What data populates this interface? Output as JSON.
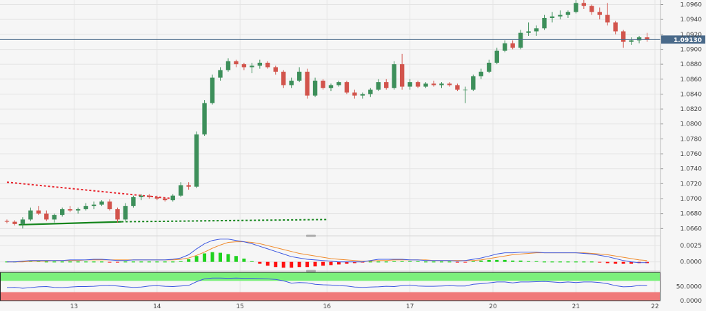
{
  "chart_data": {
    "type": "candlestick",
    "instrument_hint": "EUR/USD hourly",
    "price_axis": {
      "ylim": [
        1.0652,
        1.0966
      ],
      "ticks": [
        "1.0960",
        "1.0940",
        "1.0920",
        "1.0900",
        "1.0880",
        "1.0860",
        "1.0840",
        "1.0820",
        "1.0800",
        "1.0780",
        "1.0760",
        "1.0740",
        "1.0720",
        "1.0700",
        "1.0680",
        "1.0660"
      ]
    },
    "current_price": {
      "value": 1.0913,
      "label": "1.09130",
      "color": "#4a6a8a"
    },
    "x_axis": {
      "range": [
        0,
        82
      ],
      "ticks": [
        {
          "label": "13",
          "x": 8.5
        },
        {
          "label": "14",
          "x": 19.0
        },
        {
          "label": "15",
          "x": 29.5
        },
        {
          "label": "16",
          "x": 40.5
        },
        {
          "label": "17",
          "x": 51.0
        },
        {
          "label": "20",
          "x": 61.5
        },
        {
          "label": "21",
          "x": 72.0
        },
        {
          "label": "22",
          "x": 82.0
        }
      ]
    },
    "colors": {
      "up": "#3d8f5a",
      "down": "#d2544c",
      "grid": "#e4e4e4",
      "resistance": "#e8262e",
      "support": "#12841a"
    },
    "candles": [
      [
        0,
        1.067,
        1.0672,
        1.0667,
        1.0669
      ],
      [
        1,
        1.0669,
        1.0671,
        1.0664,
        1.0666
      ],
      [
        2,
        1.0666,
        1.0675,
        1.066,
        1.0672
      ],
      [
        3,
        1.0672,
        1.0688,
        1.067,
        1.0684
      ],
      [
        4,
        1.0684,
        1.069,
        1.0678,
        1.068
      ],
      [
        5,
        1.068,
        1.0684,
        1.067,
        1.0672
      ],
      [
        6,
        1.0672,
        1.068,
        1.0668,
        1.0678
      ],
      [
        7,
        1.0678,
        1.0688,
        1.0676,
        1.0686
      ],
      [
        8,
        1.0686,
        1.069,
        1.0682,
        1.0684
      ],
      [
        9,
        1.0684,
        1.0688,
        1.068,
        1.0686
      ],
      [
        10,
        1.0686,
        1.0694,
        1.0684,
        1.069
      ],
      [
        11,
        1.069,
        1.0696,
        1.0686,
        1.0692
      ],
      [
        12,
        1.0692,
        1.0698,
        1.069,
        1.0696
      ],
      [
        13,
        1.0696,
        1.0699,
        1.0684,
        1.0686
      ],
      [
        14,
        1.0686,
        1.0688,
        1.0668,
        1.0672
      ],
      [
        15,
        1.0672,
        1.0694,
        1.067,
        1.069
      ],
      [
        16,
        1.069,
        1.0704,
        1.0688,
        1.0702
      ],
      [
        17,
        1.0702,
        1.0706,
        1.0698,
        1.0704
      ],
      [
        18,
        1.0704,
        1.0706,
        1.07,
        1.0702
      ],
      [
        19,
        1.0702,
        1.0704,
        1.0698,
        1.07
      ],
      [
        20,
        1.07,
        1.0702,
        1.0696,
        1.0698
      ],
      [
        21,
        1.0698,
        1.0706,
        1.0696,
        1.0704
      ],
      [
        22,
        1.0704,
        1.0722,
        1.0702,
        1.0718
      ],
      [
        23,
        1.0718,
        1.0722,
        1.0712,
        1.0716
      ],
      [
        24,
        1.0716,
        1.079,
        1.0714,
        1.0786
      ],
      [
        25,
        1.0786,
        1.0832,
        1.0784,
        1.0828
      ],
      [
        26,
        1.0828,
        1.0866,
        1.0826,
        1.0862
      ],
      [
        27,
        1.0862,
        1.0876,
        1.0858,
        1.0872
      ],
      [
        28,
        1.0872,
        1.0888,
        1.087,
        1.0884
      ],
      [
        29,
        1.0884,
        1.0886,
        1.0876,
        1.088
      ],
      [
        30,
        1.088,
        1.0882,
        1.0872,
        1.0876
      ],
      [
        31,
        1.0876,
        1.0882,
        1.0868,
        1.0878
      ],
      [
        32,
        1.0878,
        1.0886,
        1.0874,
        1.0882
      ],
      [
        33,
        1.0882,
        1.0884,
        1.0874,
        1.0876
      ],
      [
        34,
        1.0876,
        1.0878,
        1.0866,
        1.087
      ],
      [
        35,
        1.087,
        1.0872,
        1.0848,
        1.0852
      ],
      [
        36,
        1.0852,
        1.0862,
        1.0848,
        1.0858
      ],
      [
        37,
        1.0858,
        1.0876,
        1.0856,
        1.087
      ],
      [
        38,
        1.087,
        1.0874,
        1.0834,
        1.0838
      ],
      [
        39,
        1.0838,
        1.0862,
        1.0836,
        1.0858
      ],
      [
        40,
        1.0858,
        1.086,
        1.0846,
        1.0848
      ],
      [
        41,
        1.0848,
        1.0854,
        1.0844,
        1.0852
      ],
      [
        42,
        1.0852,
        1.0858,
        1.085,
        1.0856
      ],
      [
        43,
        1.0856,
        1.0858,
        1.084,
        1.0842
      ],
      [
        44,
        1.0842,
        1.0846,
        1.0834,
        1.0838
      ],
      [
        45,
        1.0838,
        1.0842,
        1.0834,
        1.084
      ],
      [
        46,
        1.084,
        1.0848,
        1.0836,
        1.0846
      ],
      [
        47,
        1.0846,
        1.086,
        1.0844,
        1.0856
      ],
      [
        48,
        1.0856,
        1.086,
        1.0846,
        1.0848
      ],
      [
        49,
        1.0848,
        1.0884,
        1.0846,
        1.088
      ],
      [
        50,
        1.088,
        1.0894,
        1.0846,
        1.085
      ],
      [
        51,
        1.085,
        1.086,
        1.0846,
        1.0856
      ],
      [
        52,
        1.0856,
        1.0858,
        1.0848,
        1.085
      ],
      [
        53,
        1.085,
        1.0856,
        1.0848,
        1.0854
      ],
      [
        54,
        1.0854,
        1.0858,
        1.085,
        1.0852
      ],
      [
        55,
        1.0852,
        1.0856,
        1.0848,
        1.0854
      ],
      [
        56,
        1.0854,
        1.0856,
        1.085,
        1.0852
      ],
      [
        57,
        1.0852,
        1.0854,
        1.0844,
        1.0846
      ],
      [
        58,
        1.0846,
        1.085,
        1.0828,
        1.0846
      ],
      [
        59,
        1.0846,
        1.0866,
        1.0844,
        1.0864
      ],
      [
        60,
        1.0864,
        1.0874,
        1.086,
        1.087
      ],
      [
        61,
        1.087,
        1.0886,
        1.0868,
        1.0882
      ],
      [
        62,
        1.0882,
        1.0902,
        1.088,
        1.0898
      ],
      [
        63,
        1.0898,
        1.0912,
        1.0896,
        1.0908
      ],
      [
        64,
        1.0908,
        1.0912,
        1.09,
        1.0902
      ],
      [
        65,
        1.0902,
        1.0926,
        1.09,
        1.0922
      ],
      [
        66,
        1.0922,
        1.0936,
        1.0918,
        1.0924
      ],
      [
        67,
        1.0924,
        1.0932,
        1.0918,
        1.0928
      ],
      [
        68,
        1.0928,
        1.0946,
        1.0926,
        1.0942
      ],
      [
        69,
        1.0942,
        1.095,
        1.0936,
        1.0944
      ],
      [
        70,
        1.0944,
        1.0952,
        1.094,
        1.0946
      ],
      [
        71,
        1.0946,
        1.0952,
        1.0942,
        1.095
      ],
      [
        72,
        1.095,
        1.0966,
        1.0948,
        1.0962
      ],
      [
        73,
        1.0962,
        1.0966,
        1.0954,
        1.0958
      ],
      [
        74,
        1.0958,
        1.096,
        1.0946,
        1.095
      ],
      [
        75,
        1.095,
        1.0956,
        1.094,
        1.0946
      ],
      [
        76,
        1.0946,
        1.0962,
        1.0932,
        1.0936
      ],
      [
        77,
        1.0936,
        1.0938,
        1.092,
        1.0924
      ],
      [
        78,
        1.0924,
        1.0926,
        1.0902,
        1.091
      ],
      [
        79,
        1.091,
        1.0916,
        1.0906,
        1.0912
      ],
      [
        80,
        1.0912,
        1.0918,
        1.0908,
        1.0916
      ],
      [
        81,
        1.0916,
        1.0922,
        1.091,
        1.0913
      ]
    ],
    "trendlines": [
      {
        "name": "resistance",
        "style": "dotted",
        "color": "#e8262e",
        "points": [
          [
            0,
            1.0722
          ],
          [
            21,
            1.07
          ]
        ]
      },
      {
        "name": "support-solid",
        "style": "solid",
        "color": "#12841a",
        "points": [
          [
            1.5,
            1.0665
          ],
          [
            14.5,
            1.0669
          ]
        ]
      },
      {
        "name": "support-dotted",
        "style": "dotted",
        "color": "#12841a",
        "points": [
          [
            14.5,
            1.0669
          ],
          [
            40.5,
            1.0672
          ]
        ]
      }
    ],
    "macd": {
      "ylim": [
        -0.0012,
        0.0038
      ],
      "ticks": [
        "0.0025",
        "0.0000"
      ],
      "histogram": [
        0.0,
        0.0,
        0.0001,
        0.0001,
        0.0001,
        0.0,
        0.0,
        0.0,
        0.0,
        0.0,
        0.0,
        0.0,
        0.0,
        -0.0001,
        -0.0001,
        0.0,
        0.0,
        0.0,
        0.0,
        0.0,
        0.0,
        0.0,
        0.0001,
        0.0004,
        0.0009,
        0.0013,
        0.0015,
        0.0014,
        0.0012,
        0.0009,
        0.0005,
        0.0001,
        -0.0003,
        -0.0006,
        -0.0008,
        -0.0009,
        -0.0009,
        -0.0008,
        -0.0008,
        -0.0007,
        -0.0006,
        -0.0005,
        -0.0004,
        -0.0003,
        -0.0002,
        -0.0001,
        0.0,
        0.0,
        0.0,
        0.0001,
        0.0001,
        0.0001,
        0.0001,
        0.0,
        0.0,
        0.0,
        0.0,
        -0.0001,
        -0.0001,
        0.0001,
        0.0002,
        0.0003,
        0.0003,
        0.0003,
        0.0002,
        0.0002,
        0.0001,
        0.0001,
        0.0,
        0.0,
        0.0,
        0.0,
        0.0,
        0.0,
        0.0,
        -0.0001,
        -0.0002,
        -0.0003,
        -0.0003,
        -0.0003,
        -0.0002,
        -0.0002
      ],
      "macd_line": [
        0.0,
        0.0,
        0.0001,
        0.0002,
        0.0002,
        0.0002,
        0.0002,
        0.0002,
        0.0003,
        0.0003,
        0.0003,
        0.0004,
        0.0004,
        0.0003,
        0.0002,
        0.0002,
        0.0003,
        0.0003,
        0.0003,
        0.0003,
        0.0003,
        0.0004,
        0.0006,
        0.0011,
        0.002,
        0.0028,
        0.0033,
        0.0035,
        0.0035,
        0.0033,
        0.0031,
        0.0028,
        0.0024,
        0.002,
        0.0016,
        0.0012,
        0.0008,
        0.0006,
        0.0004,
        0.0003,
        0.0002,
        0.0001,
        0.0,
        0.0,
        0.0,
        0.0,
        0.0002,
        0.0004,
        0.0004,
        0.0004,
        0.0004,
        0.0003,
        0.0003,
        0.0002,
        0.0002,
        0.0002,
        0.0002,
        0.0001,
        0.0002,
        0.0004,
        0.0006,
        0.0009,
        0.0012,
        0.0014,
        0.0014,
        0.0015,
        0.0015,
        0.0015,
        0.0014,
        0.0014,
        0.0014,
        0.0014,
        0.0014,
        0.0013,
        0.0012,
        0.001,
        0.0008,
        0.0005,
        0.0002,
        0.0,
        -0.0001,
        -0.0001
      ],
      "signal_line": [
        0.0,
        0.0,
        0.0,
        0.0001,
        0.0001,
        0.0001,
        0.0002,
        0.0002,
        0.0002,
        0.0002,
        0.0003,
        0.0003,
        0.0003,
        0.0003,
        0.0003,
        0.0003,
        0.0003,
        0.0003,
        0.0003,
        0.0003,
        0.0003,
        0.0003,
        0.0004,
        0.0006,
        0.001,
        0.0015,
        0.0021,
        0.0026,
        0.003,
        0.0031,
        0.0031,
        0.003,
        0.0028,
        0.0025,
        0.0022,
        0.0019,
        0.0016,
        0.0013,
        0.0011,
        0.0009,
        0.0007,
        0.0005,
        0.0004,
        0.0003,
        0.0002,
        0.0001,
        0.0001,
        0.0002,
        0.0002,
        0.0003,
        0.0003,
        0.0003,
        0.0003,
        0.0003,
        0.0002,
        0.0002,
        0.0002,
        0.0002,
        0.0002,
        0.0002,
        0.0003,
        0.0005,
        0.0007,
        0.0009,
        0.0011,
        0.0012,
        0.0013,
        0.0014,
        0.0014,
        0.0014,
        0.0014,
        0.0014,
        0.0014,
        0.0014,
        0.0013,
        0.0012,
        0.0011,
        0.0009,
        0.0007,
        0.0005,
        0.0003,
        0.0002
      ],
      "colors": {
        "macd": "#3a55e0",
        "signal": "#f08a2a",
        "pos": "#1fd21f",
        "neg": "#ff1010"
      }
    },
    "rsi": {
      "ylim": [
        0,
        100
      ],
      "ticks": [
        "50.0000",
        "0.0000"
      ],
      "overbought": 70,
      "oversold": 30,
      "values": [
        46,
        47,
        44,
        46,
        49,
        50,
        47,
        46,
        48,
        50,
        50,
        51,
        53,
        54,
        52,
        49,
        47,
        48,
        52,
        53,
        51,
        50,
        52,
        54,
        67,
        77,
        80,
        80,
        79,
        80,
        79,
        79,
        78,
        77,
        75,
        70,
        62,
        64,
        63,
        58,
        56,
        55,
        53,
        52,
        48,
        47,
        48,
        49,
        51,
        50,
        53,
        55,
        52,
        51,
        51,
        52,
        53,
        52,
        52,
        58,
        60,
        63,
        66,
        66,
        63,
        66,
        66,
        67,
        68,
        66,
        64,
        66,
        64,
        66,
        66,
        64,
        60,
        53,
        49,
        50,
        54,
        53
      ],
      "colors": {
        "line": "#3a55e0",
        "upper": "#7cf07c",
        "lower": "#f07a7a"
      }
    }
  }
}
